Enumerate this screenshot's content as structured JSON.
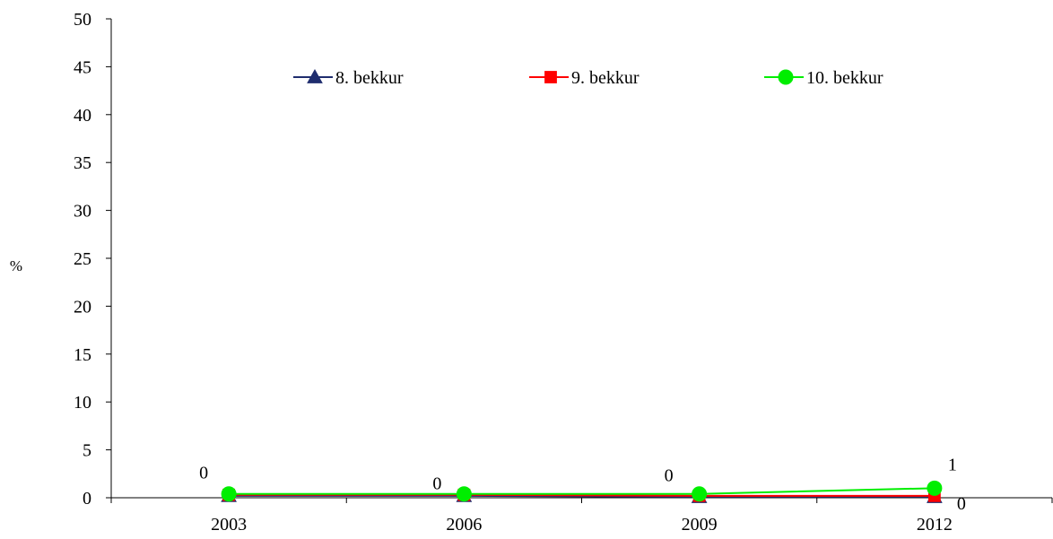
{
  "chart_data": {
    "type": "line",
    "title": "",
    "xlabel": "",
    "ylabel": "%",
    "ylim": [
      0,
      50
    ],
    "yticks": [
      0,
      5,
      10,
      15,
      20,
      25,
      30,
      35,
      40,
      45,
      50
    ],
    "categories": [
      "2003",
      "2006",
      "2009",
      "2012"
    ],
    "grid": false,
    "legend_position": "top-right",
    "series": [
      {
        "name": "8. bekkur",
        "color": "#1f2d6e",
        "marker": "triangle",
        "values": [
          0.2,
          0.2,
          0.1,
          0.1
        ]
      },
      {
        "name": "9. bekkur",
        "color": "#ff0000",
        "marker": "square",
        "values": [
          0.3,
          0.3,
          0.2,
          0.2
        ]
      },
      {
        "name": "10. bekkur",
        "color": "#00ee00",
        "marker": "circle",
        "values": [
          0.4,
          0.4,
          0.4,
          1.0
        ]
      }
    ],
    "data_labels": [
      {
        "category": "2003",
        "text": "0"
      },
      {
        "category": "2006",
        "text": "0"
      },
      {
        "category": "2009",
        "text": "0"
      },
      {
        "category": "2012",
        "text": "1"
      },
      {
        "category": "2012",
        "text": "0"
      }
    ]
  }
}
